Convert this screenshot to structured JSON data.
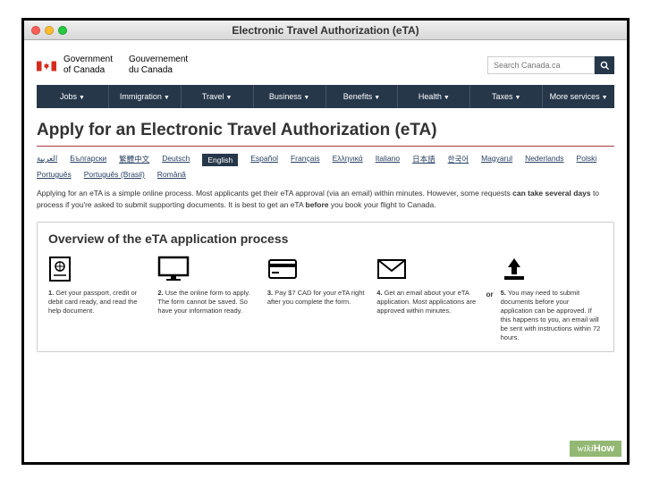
{
  "window": {
    "title": "Electronic Travel Authorization (eTA)"
  },
  "gov": {
    "en_line1": "Government",
    "en_line2": "of Canada",
    "fr_line1": "Gouvernement",
    "fr_line2": "du Canada"
  },
  "search": {
    "placeholder": "Search Canada.ca"
  },
  "nav": {
    "items": [
      {
        "label": "Jobs"
      },
      {
        "label": "Immigration"
      },
      {
        "label": "Travel"
      },
      {
        "label": "Business"
      },
      {
        "label": "Benefits"
      },
      {
        "label": "Health"
      },
      {
        "label": "Taxes"
      },
      {
        "label": "More services"
      }
    ]
  },
  "page": {
    "title": "Apply for an Electronic Travel Authorization (eTA)"
  },
  "languages": {
    "row1": [
      {
        "label": "العربية"
      },
      {
        "label": "Български"
      },
      {
        "label": "繁體中文"
      },
      {
        "label": "Deutsch"
      },
      {
        "label": "English",
        "active": true
      },
      {
        "label": "Español"
      },
      {
        "label": "Français"
      },
      {
        "label": "Ελληνικά"
      },
      {
        "label": "Italiano"
      },
      {
        "label": "日本語"
      },
      {
        "label": "한국어"
      }
    ],
    "row2": [
      {
        "label": "Magyarul"
      },
      {
        "label": "Nederlands"
      },
      {
        "label": "Polski"
      },
      {
        "label": "Português"
      },
      {
        "label": "Português (Brasil)"
      },
      {
        "label": "Română"
      }
    ]
  },
  "intro": {
    "part1": "Applying for an eTA is a simple online process. Most applicants get their eTA approval (via an email) within minutes. However, some requests ",
    "bold1": "can take several days",
    "part2": " to process if you're asked to submit supporting documents. It is best to get an eTA ",
    "bold2": "before",
    "part3": " you book your flight to Canada."
  },
  "overview": {
    "title": "Overview of the eTA application process",
    "or": "or",
    "steps": [
      {
        "num": "1.",
        "text": " Get your passport, credit or debit card ready, and read the help document."
      },
      {
        "num": "2.",
        "text": " Use the online form to apply. The form cannot be saved. So have your information ready."
      },
      {
        "num": "3.",
        "text": " Pay $7 CAD for your eTA right after you complete the form."
      },
      {
        "num": "4.",
        "text": " Get an email about your eTA application. Most applications are approved within minutes."
      },
      {
        "num": "5.",
        "text": " You may need to submit documents before your application can be approved. If this happens to you, an email will be sent with instructions within 72 hours."
      }
    ]
  },
  "watermark": {
    "wiki": "wiki",
    "how": "How"
  },
  "colors": {
    "nav_bg": "#26374a",
    "accent_red": "#af3c43",
    "link_blue": "#284162",
    "flag_red": "#d52b1e"
  }
}
